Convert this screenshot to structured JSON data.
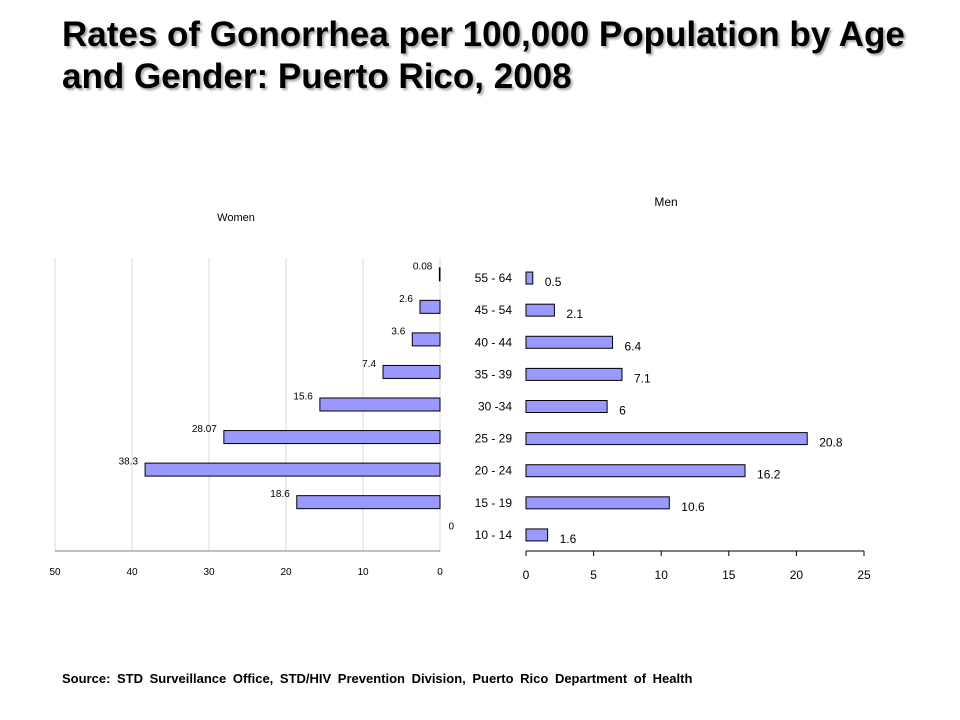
{
  "title": "Rates of Gonorrhea per 100,000 Population by Age and Gender: Puerto Rico, 2008",
  "source": "Source: STD Surveillance Office, STD/HIV Prevention Division, Puerto Rico Department of Health",
  "colors": {
    "bar_fill": "#9999ff",
    "bar_stroke": "#000000",
    "grid": "#d9d9d9"
  },
  "chart_data": [
    {
      "type": "bar",
      "orientation": "horizontal",
      "title": "Women",
      "categories": [
        "10 - 14",
        "15 - 19",
        "20 - 24",
        "25 - 29",
        "30 -34",
        "35 - 39",
        "40 - 44",
        "45 - 54",
        "55 - 64"
      ],
      "values": [
        0,
        18.6,
        38.3,
        28.07,
        15.6,
        7.4,
        3.6,
        2.6,
        0.08
      ],
      "data_labels": [
        "0",
        "18.6",
        "38.3",
        "28.07",
        "15.6",
        "7.4",
        "3.6",
        "2.6",
        "0.08"
      ],
      "xlim": [
        0,
        50
      ],
      "x_reversed": true,
      "x_ticks": [
        "0",
        "10",
        "20",
        "30",
        "40",
        "50"
      ],
      "grid": true
    },
    {
      "type": "bar",
      "orientation": "horizontal",
      "title": "Men",
      "categories": [
        "10 - 14",
        "15 - 19",
        "20 - 24",
        "25 - 29",
        "30 -34",
        "35 - 39",
        "40 - 44",
        "45 - 54",
        "55 - 64"
      ],
      "values": [
        1.6,
        10.6,
        16.2,
        20.8,
        6,
        7.1,
        6.4,
        2.1,
        0.5
      ],
      "data_labels": [
        "1.6",
        "10.6",
        "16.2",
        "20.8",
        "6",
        "7.1",
        "6.4",
        "2.1",
        "0.5"
      ],
      "xlim": [
        0,
        25
      ],
      "x_ticks": [
        "0",
        "5",
        "10",
        "15",
        "20",
        "25"
      ],
      "grid": true
    }
  ]
}
